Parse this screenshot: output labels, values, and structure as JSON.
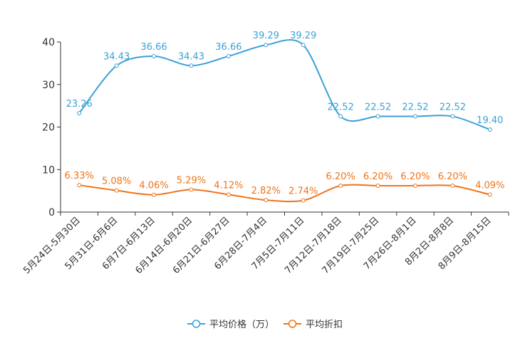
{
  "chart_data": {
    "type": "line",
    "categories": [
      "5月24日-5月30日",
      "5月31日-6月6日",
      "6月7日-6月13日",
      "6月14日-6月20日",
      "6月21日-6月27日",
      "6月28日-7月4日",
      "7月5日-7月11日",
      "7月12日-7月18日",
      "7月19日-7月25日",
      "7月26日-8月1日",
      "8月2日-8月8日",
      "8月9日-8月15日"
    ],
    "ylim": [
      0,
      40
    ],
    "yticks": [
      0,
      10,
      20,
      30,
      40
    ],
    "series": [
      {
        "name": "平均价格（万）",
        "color": "#3ba1d6",
        "values": [
          23.26,
          34.43,
          36.66,
          34.43,
          36.66,
          39.29,
          39.29,
          22.52,
          22.52,
          22.52,
          22.52,
          19.4
        ],
        "labels": [
          "23.26",
          "34.43",
          "36.66",
          "34.43",
          "36.66",
          "39.29",
          "39.29",
          "22.52",
          "22.52",
          "22.52",
          "22.52",
          "19.40"
        ]
      },
      {
        "name": "平均折扣",
        "color": "#f07316",
        "values": [
          6.33,
          5.08,
          4.06,
          5.29,
          4.12,
          2.82,
          2.74,
          6.2,
          6.2,
          6.2,
          6.2,
          4.09
        ],
        "labels": [
          "6.33%",
          "5.08%",
          "4.06%",
          "5.29%",
          "4.12%",
          "2.82%",
          "2.74%",
          "6.20%",
          "6.20%",
          "6.20%",
          "6.20%",
          "4.09%"
        ]
      }
    ],
    "legend": [
      "平均价格（万）",
      "平均折扣"
    ],
    "legend_position": "bottom-center",
    "grid": false
  }
}
